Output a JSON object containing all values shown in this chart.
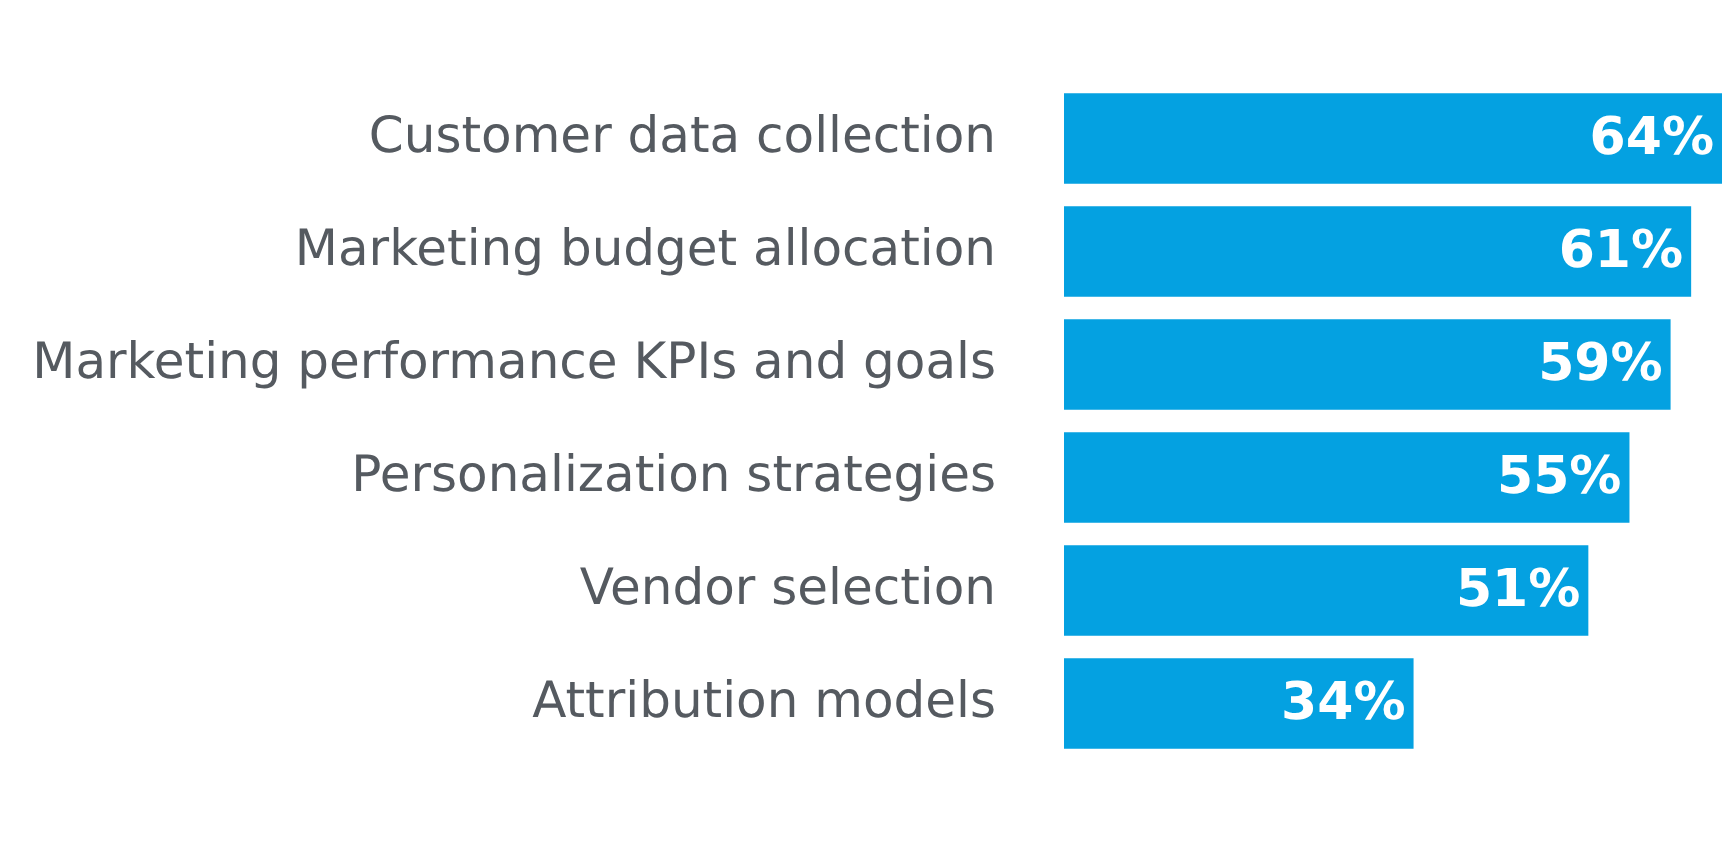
{
  "chart_data": {
    "type": "bar",
    "orientation": "horizontal",
    "categories": [
      "Customer data collection",
      "Marketing budget allocation",
      "Marketing performance KPIs and goals",
      "Personalization strategies",
      "Vendor selection",
      "Attribution models"
    ],
    "values": [
      64,
      61,
      59,
      55,
      51,
      34
    ],
    "value_labels": [
      "64%",
      "61%",
      "59%",
      "55%",
      "51%",
      "34%"
    ],
    "color": "#04a1e1"
  }
}
